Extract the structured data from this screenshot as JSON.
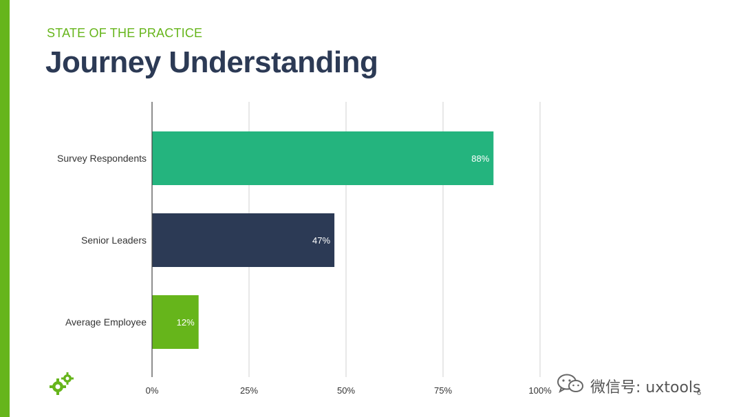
{
  "slide": {
    "subtitle": "STATE OF THE PRACTICE",
    "title": "Journey Understanding",
    "page_number": "6",
    "logo_icon": "gears-icon"
  },
  "watermark": {
    "icon": "wechat-icon",
    "text": "微信号: uxtools"
  },
  "colors": {
    "accent": "#66b51b",
    "title": "#2c3a55",
    "grid": "#d0d0d0",
    "axis": "#444444"
  },
  "chart_data": {
    "type": "bar",
    "orientation": "horizontal",
    "categories": [
      "Survey Respondents",
      "Senior Leaders",
      "Average Employee"
    ],
    "values": [
      88,
      47,
      12
    ],
    "value_labels": [
      "88%",
      "47%",
      "12%"
    ],
    "bar_colors": [
      "#24b47e",
      "#2c3a55",
      "#66b51b"
    ],
    "xlim": [
      0,
      100
    ],
    "xticks": [
      0,
      25,
      50,
      75,
      100
    ],
    "xtick_labels": [
      "0%",
      "25%",
      "50%",
      "75%",
      "100%"
    ],
    "grid": true,
    "legend": "none"
  }
}
